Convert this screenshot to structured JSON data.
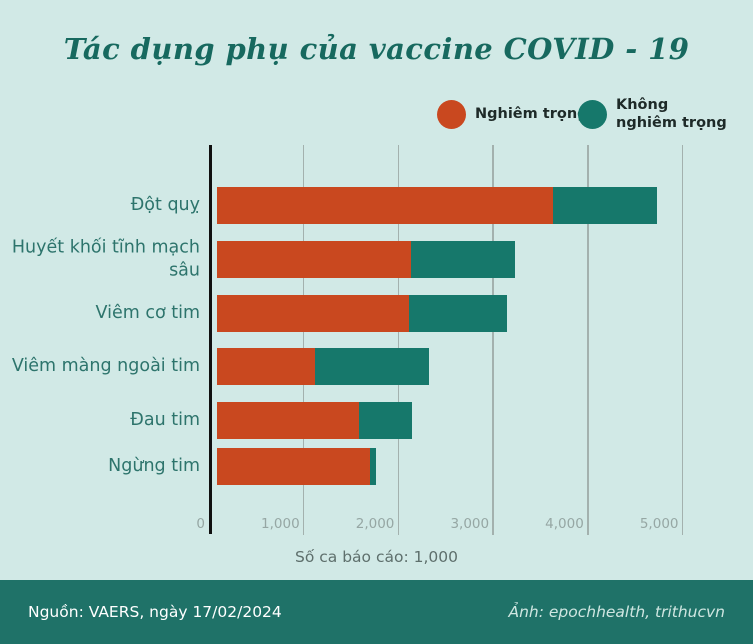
{
  "title": "Tác dụng phụ của vaccine COVID - 19",
  "legend": {
    "items": [
      {
        "id": "serious",
        "label": "Nghiêm trọng",
        "color": "#c9481f"
      },
      {
        "id": "non_serious",
        "label": "Không\nnghiêm trọng",
        "color": "#16786b"
      }
    ]
  },
  "chart_data": {
    "type": "bar",
    "orientation": "horizontal",
    "stacked": true,
    "title": "Tác dụng phụ của vaccine COVID - 19",
    "categories": [
      "Đột quỵ",
      "Huyết khối tĩnh mạch sâu",
      "Viêm cơ tim",
      "Viêm màng ngoài tim",
      "Đau tim",
      "Ngừng tim"
    ],
    "series": [
      {
        "name": "Nghiêm trọng",
        "color": "#c9481f",
        "values": [
          3550,
          2050,
          2030,
          1040,
          1500,
          1620
        ]
      },
      {
        "name": "Không nghiêm trọng",
        "color": "#16786b",
        "values": [
          1100,
          1100,
          1030,
          1200,
          560,
          60
        ]
      }
    ],
    "x_ticks": [
      {
        "value": 0,
        "label": "0"
      },
      {
        "value": 1000,
        "label": "1,000"
      },
      {
        "value": 2000,
        "label": "2,000"
      },
      {
        "value": 3000,
        "label": "3,000"
      },
      {
        "value": 4000,
        "label": "4,000"
      },
      {
        "value": 5000,
        "label": "5,000"
      }
    ],
    "xlim": [
      0,
      5300
    ],
    "xlabel": "Số ca báo cáo: 1,000",
    "grid": true,
    "legend_position": "top-right"
  },
  "footer": {
    "source": "Nguồn: VAERS, ngày 17/02/2024",
    "credit": "Ảnh: epochhealth, trithucvn"
  },
  "colors": {
    "background": "#d1e9e6",
    "footer_background": "#1f7268",
    "title": "#17695f",
    "category_label": "#2d746c",
    "tick_label": "#96a7a4",
    "axis_label": "#5e6f6c",
    "axis_line": "#101010",
    "gridline": "#a3b1ae",
    "serious": "#c9481f",
    "non_serious": "#16786b"
  }
}
